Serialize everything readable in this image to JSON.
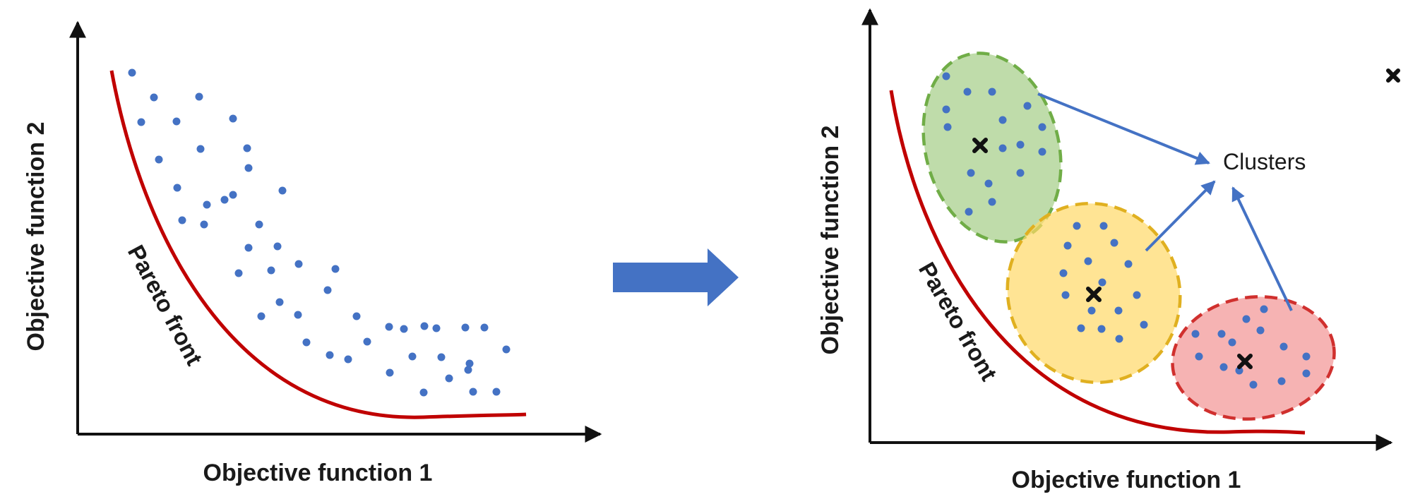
{
  "left_panel": {
    "x_axis_label": "Objective function 1",
    "y_axis_label": "Objective function 2",
    "curve_label": "Pareto front"
  },
  "right_panel": {
    "x_axis_label": "Objective function 1",
    "y_axis_label": "Objective function 2",
    "curve_label": "Pareto front",
    "clusters_label": "Clusters",
    "clusters": [
      {
        "name": "green-cluster",
        "fill": "#a9d08e",
        "stroke": "#70ad47"
      },
      {
        "name": "yellow-cluster",
        "fill": "#ffd966",
        "stroke": "#e0b020"
      },
      {
        "name": "red-cluster",
        "fill": "#f4a0a0",
        "stroke": "#d0302e"
      }
    ]
  },
  "colors": {
    "axis": "#111111",
    "pareto_curve": "#c00000",
    "dots": "#4472c4",
    "arrow": "#4472c4",
    "transition_arrow": "#4472c4",
    "centroid": "#111111"
  },
  "icons": {
    "transition": "right-arrow-icon",
    "centroid": "x-mark-icon"
  }
}
